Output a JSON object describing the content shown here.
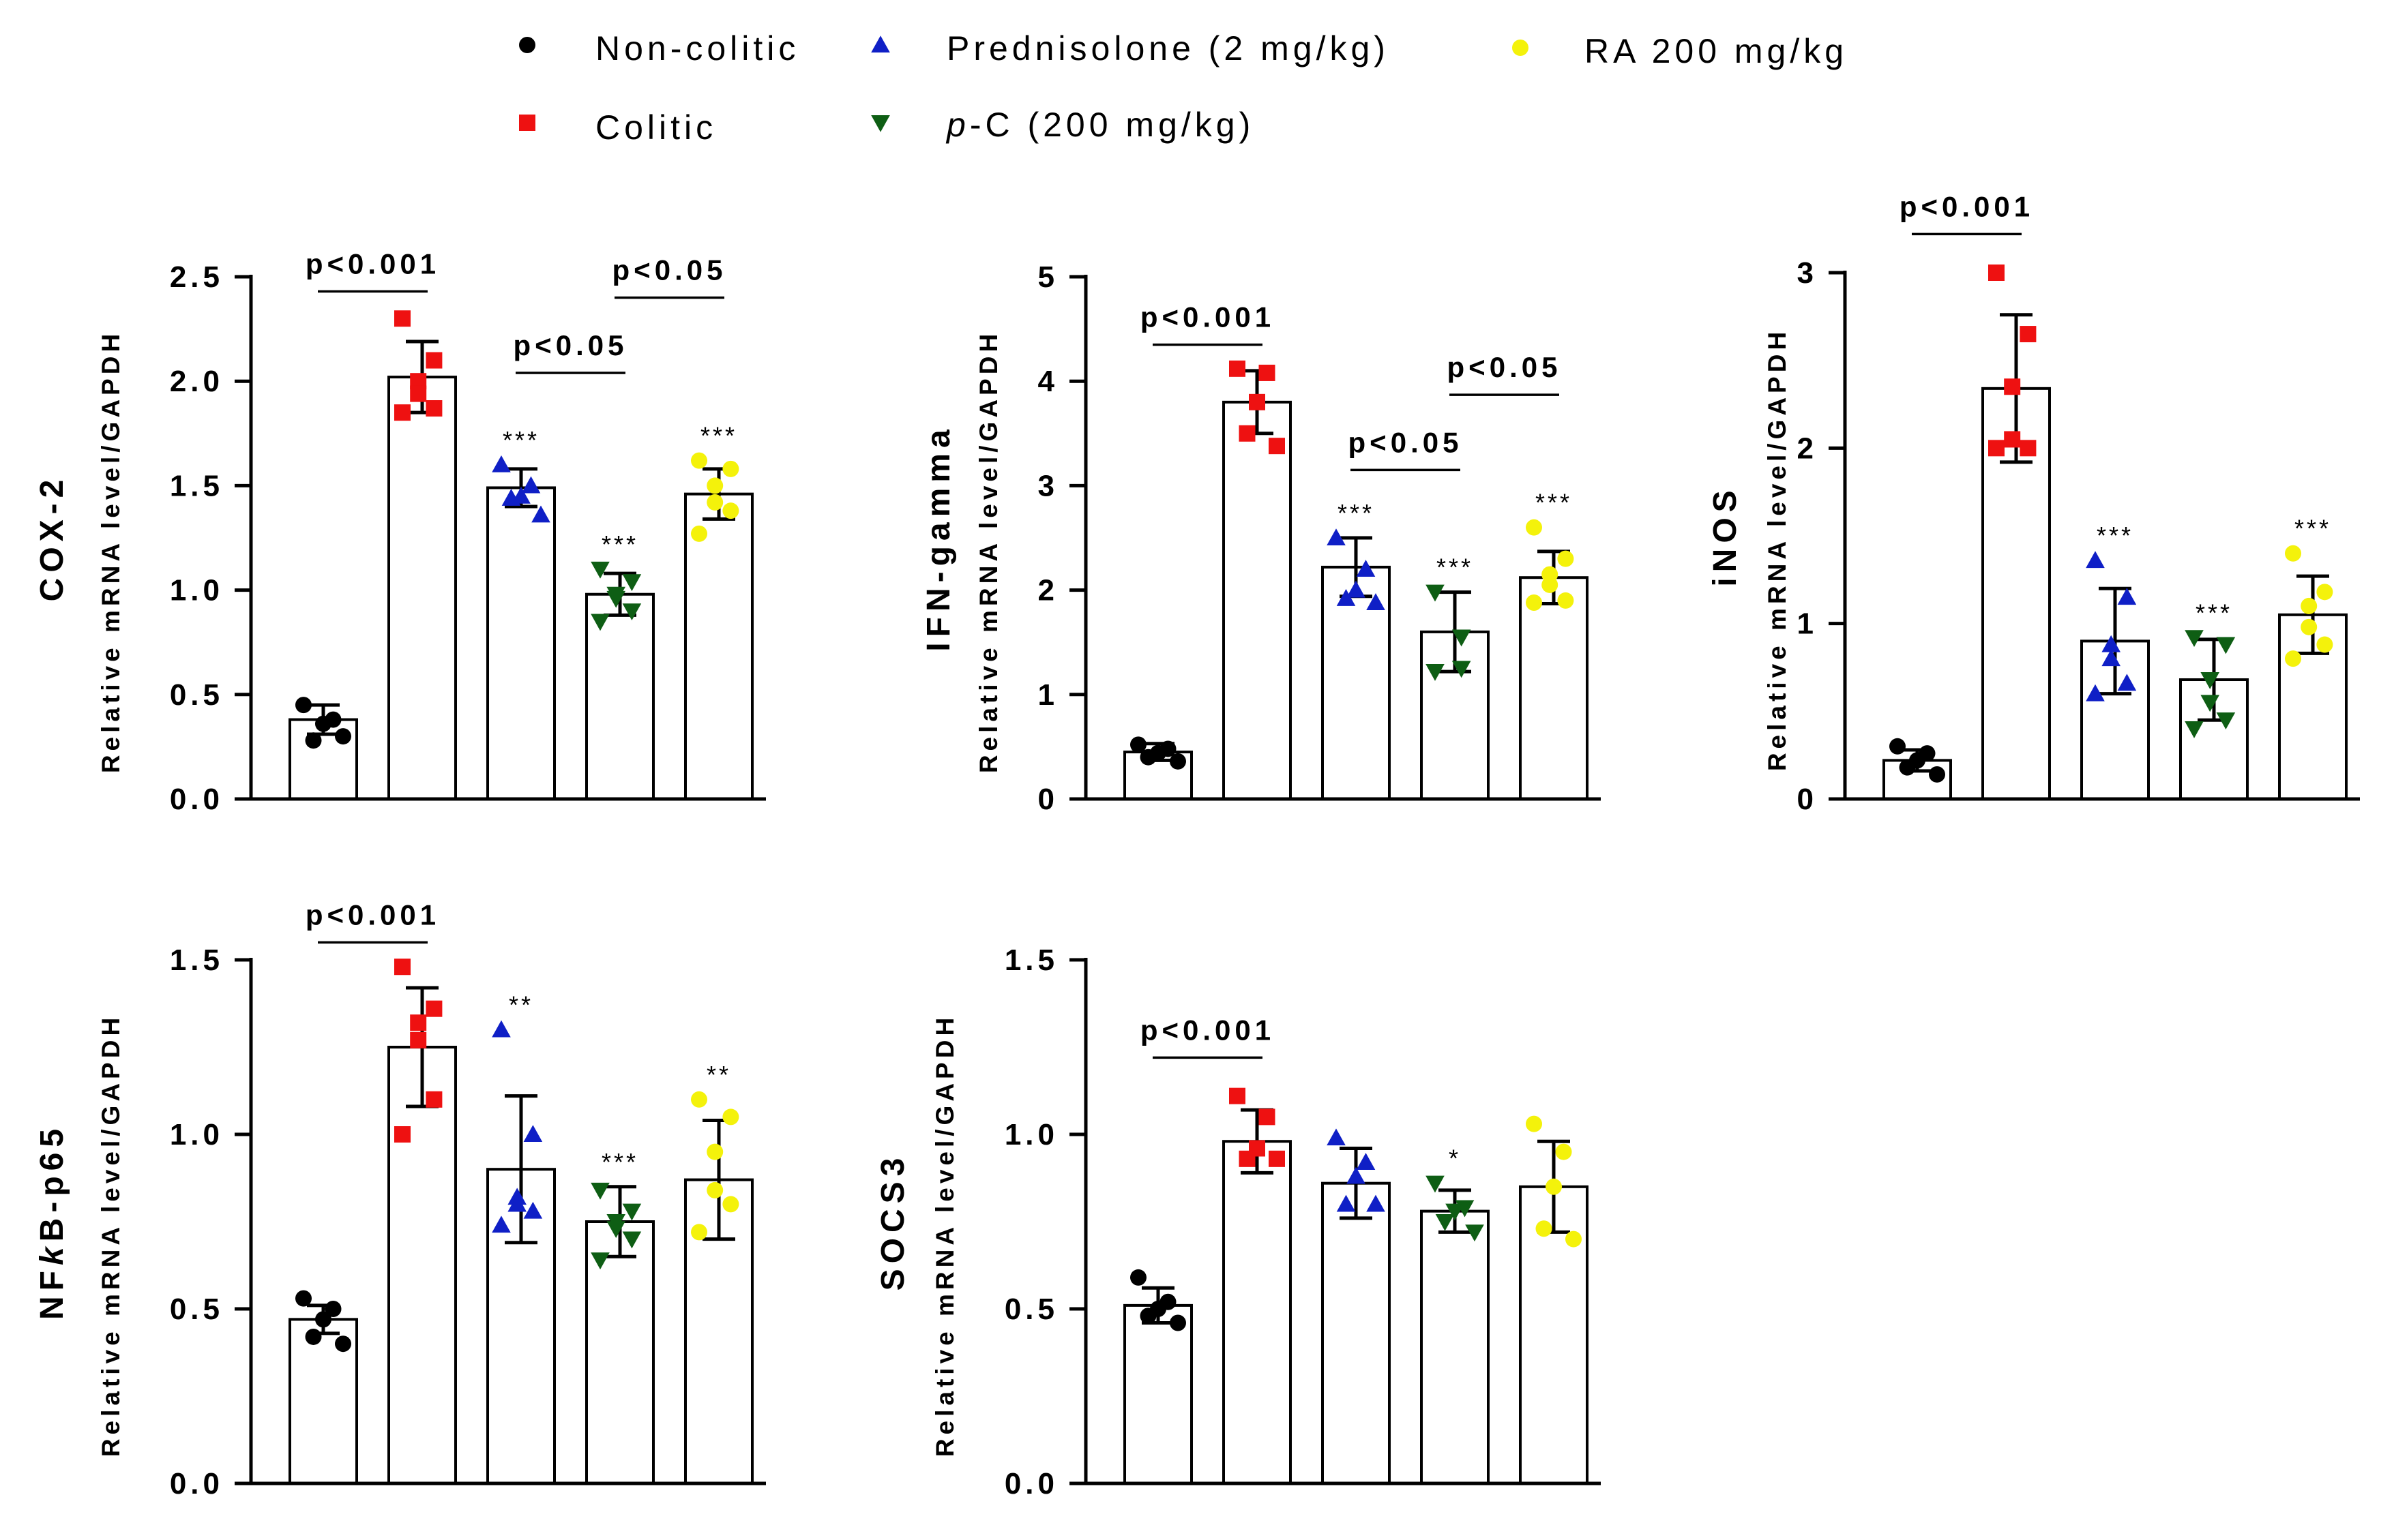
{
  "legend": [
    {
      "group": "Non-colitic",
      "label_parts": [
        {
          "text": "Non-colitic",
          "italic": false
        }
      ],
      "color": "#000000",
      "marker": "circle"
    },
    {
      "group": "Prednisolone (2 mg/kg)",
      "label_parts": [
        {
          "text": "Prednisolone (2 mg/kg)",
          "italic": false
        }
      ],
      "color": "#0f1fc6",
      "marker": "triangle-up"
    },
    {
      "group": "RA 200 mg/kg",
      "label_parts": [
        {
          "text": "RA 200 mg/kg",
          "italic": false
        }
      ],
      "color": "#f4f20b",
      "marker": "circle"
    },
    {
      "group": "Colitic",
      "label_parts": [
        {
          "text": "Colitic",
          "italic": false
        }
      ],
      "color": "#ee1111",
      "marker": "square"
    },
    {
      "group": "p-C (200 mg/kg)",
      "label_parts": [
        {
          "text": "p",
          "italic": true
        },
        {
          "text": "-C (200 mg/kg)",
          "italic": false
        }
      ],
      "color": "#0e5e14",
      "marker": "triangle-down"
    }
  ],
  "chart_data": [
    {
      "type": "bar",
      "id": "cox2",
      "title": "",
      "ylabel_parts": [
        {
          "text": "COX-2",
          "italic": false
        }
      ],
      "ylabel_sub": "Relative mRNA level/GAPDH",
      "categories": [
        "Non-colitic",
        "Colitic",
        "Prednisolone (2 mg/kg)",
        "p-C (200 mg/kg)",
        "RA 200 mg/kg"
      ],
      "ylim": [
        0,
        2.5
      ],
      "yticks": [
        0,
        0.5,
        1,
        1.5,
        2,
        2.5
      ],
      "ytick_labels": [
        "0.0",
        "0.5",
        "1.0",
        "1.5",
        "2.0",
        "2.5"
      ],
      "values": [
        0.38,
        2.02,
        1.49,
        0.98,
        1.46
      ],
      "errors": [
        0.07,
        0.17,
        0.09,
        0.1,
        0.12
      ],
      "points": [
        [
          0.45,
          0.38,
          0.36,
          0.28,
          0.3
        ],
        [
          2.3,
          2.1,
          2.0,
          1.94,
          1.87,
          1.85
        ],
        [
          1.6,
          1.5,
          1.45,
          1.44,
          1.36
        ],
        [
          1.1,
          1.04,
          0.98,
          0.96,
          0.9,
          0.85
        ],
        [
          1.62,
          1.58,
          1.5,
          1.42,
          1.38,
          1.27
        ]
      ],
      "stars": [
        "",
        "",
        "***",
        "***",
        "***"
      ],
      "comparisons": [
        {
          "from": 0,
          "to": 1,
          "label": "p<0.001",
          "y": 2.43
        },
        {
          "from": 2,
          "to": 3,
          "label": "p<0.05",
          "y": 2.04
        },
        {
          "from": 3,
          "to": 4,
          "label": "p<0.05",
          "y": 2.4
        }
      ]
    },
    {
      "type": "bar",
      "id": "ifng",
      "title": "",
      "ylabel_parts": [
        {
          "text": "IFN-gamma",
          "italic": false
        }
      ],
      "ylabel_sub": "Relative mRNA level/GAPDH",
      "categories": [
        "Non-colitic",
        "Colitic",
        "Prednisolone (2 mg/kg)",
        "p-C (200 mg/kg)",
        "RA 200 mg/kg"
      ],
      "ylim": [
        0,
        5
      ],
      "yticks": [
        0,
        1,
        2,
        3,
        4,
        5
      ],
      "ytick_labels": [
        "0",
        "1",
        "2",
        "3",
        "4",
        "5"
      ],
      "values": [
        0.45,
        3.8,
        2.22,
        1.6,
        2.12
      ],
      "errors": [
        0.08,
        0.3,
        0.28,
        0.38,
        0.25
      ],
      "points": [
        [
          0.52,
          0.48,
          0.44,
          0.4,
          0.36
        ],
        [
          4.12,
          4.08,
          3.8,
          3.5,
          3.38
        ],
        [
          2.5,
          2.2,
          2.0,
          1.92,
          1.88
        ],
        [
          1.98,
          1.55,
          1.25,
          1.22
        ],
        [
          2.6,
          2.3,
          2.15,
          2.05,
          1.9,
          1.88
        ]
      ],
      "stars": [
        "",
        "",
        "***",
        "***",
        "***"
      ],
      "comparisons": [
        {
          "from": 0,
          "to": 1,
          "label": "p<0.001",
          "y": 4.35
        },
        {
          "from": 2,
          "to": 3,
          "label": "p<0.05",
          "y": 3.15
        },
        {
          "from": 3,
          "to": 4,
          "label": "p<0.05",
          "y": 3.87
        }
      ]
    },
    {
      "type": "bar",
      "id": "inos",
      "title": "",
      "ylabel_parts": [
        {
          "text": "iNOS",
          "italic": false
        }
      ],
      "ylabel_sub": "Relative mRNA level/GAPDH",
      "categories": [
        "Non-colitic",
        "Colitic",
        "Prednisolone (2 mg/kg)",
        "p-C (200 mg/kg)",
        "RA 200 mg/kg"
      ],
      "ylim": [
        0,
        3
      ],
      "yticks": [
        0,
        1,
        2,
        3
      ],
      "ytick_labels": [
        "0",
        "1",
        "2",
        "3"
      ],
      "values": [
        0.22,
        2.34,
        0.9,
        0.68,
        1.05
      ],
      "errors": [
        0.06,
        0.42,
        0.3,
        0.23,
        0.22
      ],
      "points": [
        [
          0.3,
          0.26,
          0.22,
          0.18,
          0.14
        ],
        [
          3.0,
          2.65,
          2.35,
          2.05,
          2.0,
          2.0
        ],
        [
          1.36,
          1.15,
          0.88,
          0.8,
          0.66,
          0.6
        ],
        [
          0.92,
          0.88,
          0.68,
          0.55,
          0.45,
          0.4
        ],
        [
          1.4,
          1.18,
          1.1,
          0.98,
          0.88,
          0.8
        ]
      ],
      "stars": [
        "",
        "",
        "***",
        "***",
        "***"
      ],
      "comparisons": [
        {
          "from": 0,
          "to": 1,
          "label": "p<0.001",
          "y": 3.22
        }
      ]
    },
    {
      "type": "bar",
      "id": "nfkb",
      "title": "",
      "ylabel_parts": [
        {
          "text": "NF",
          "italic": false
        },
        {
          "text": "k",
          "italic": true
        },
        {
          "text": "B-p65",
          "italic": false
        }
      ],
      "ylabel_sub": "Relative mRNA level/GAPDH",
      "categories": [
        "Non-colitic",
        "Colitic",
        "Prednisolone (2 mg/kg)",
        "p-C (200 mg/kg)",
        "RA 200 mg/kg"
      ],
      "ylim": [
        0,
        1.5
      ],
      "yticks": [
        0,
        0.5,
        1,
        1.5
      ],
      "ytick_labels": [
        "0.0",
        "0.5",
        "1.0",
        "1.5"
      ],
      "values": [
        0.47,
        1.25,
        0.9,
        0.75,
        0.87
      ],
      "errors": [
        0.04,
        0.17,
        0.21,
        0.1,
        0.17
      ],
      "points": [
        [
          0.53,
          0.5,
          0.47,
          0.42,
          0.4
        ],
        [
          1.48,
          1.36,
          1.32,
          1.27,
          1.1,
          1.0
        ],
        [
          1.3,
          1.0,
          0.82,
          0.8,
          0.78,
          0.74
        ],
        [
          0.84,
          0.78,
          0.75,
          0.73,
          0.7,
          0.64
        ],
        [
          1.1,
          1.05,
          0.95,
          0.84,
          0.8,
          0.72
        ]
      ],
      "stars": [
        "",
        "",
        "**",
        "***",
        "**"
      ],
      "comparisons": [
        {
          "from": 0,
          "to": 1,
          "label": "p<0.001",
          "y": 1.55
        }
      ]
    },
    {
      "type": "bar",
      "id": "socs3",
      "title": "",
      "ylabel_parts": [
        {
          "text": "SOCS3",
          "italic": false
        }
      ],
      "ylabel_sub": "Relative mRNA level/GAPDH",
      "categories": [
        "Non-colitic",
        "Colitic",
        "Prednisolone (2 mg/kg)",
        "p-C (200 mg/kg)",
        "RA 200 mg/kg"
      ],
      "ylim": [
        0,
        1.5
      ],
      "yticks": [
        0,
        0.5,
        1,
        1.5
      ],
      "ytick_labels": [
        "0.0",
        "0.5",
        "1.0",
        "1.5"
      ],
      "values": [
        0.51,
        0.98,
        0.86,
        0.78,
        0.85
      ],
      "errors": [
        0.05,
        0.09,
        0.1,
        0.06,
        0.13
      ],
      "points": [
        [
          0.59,
          0.52,
          0.5,
          0.48,
          0.46
        ],
        [
          1.11,
          1.05,
          0.96,
          0.93,
          0.93
        ],
        [
          0.99,
          0.92,
          0.88,
          0.8,
          0.8
        ],
        [
          0.86,
          0.79,
          0.78,
          0.75,
          0.72
        ],
        [
          1.03,
          0.95,
          0.85,
          0.73,
          0.7
        ]
      ],
      "stars": [
        "",
        "",
        "",
        "*",
        ""
      ],
      "comparisons": [
        {
          "from": 0,
          "to": 1,
          "label": "p<0.001",
          "y": 1.22
        }
      ]
    }
  ]
}
